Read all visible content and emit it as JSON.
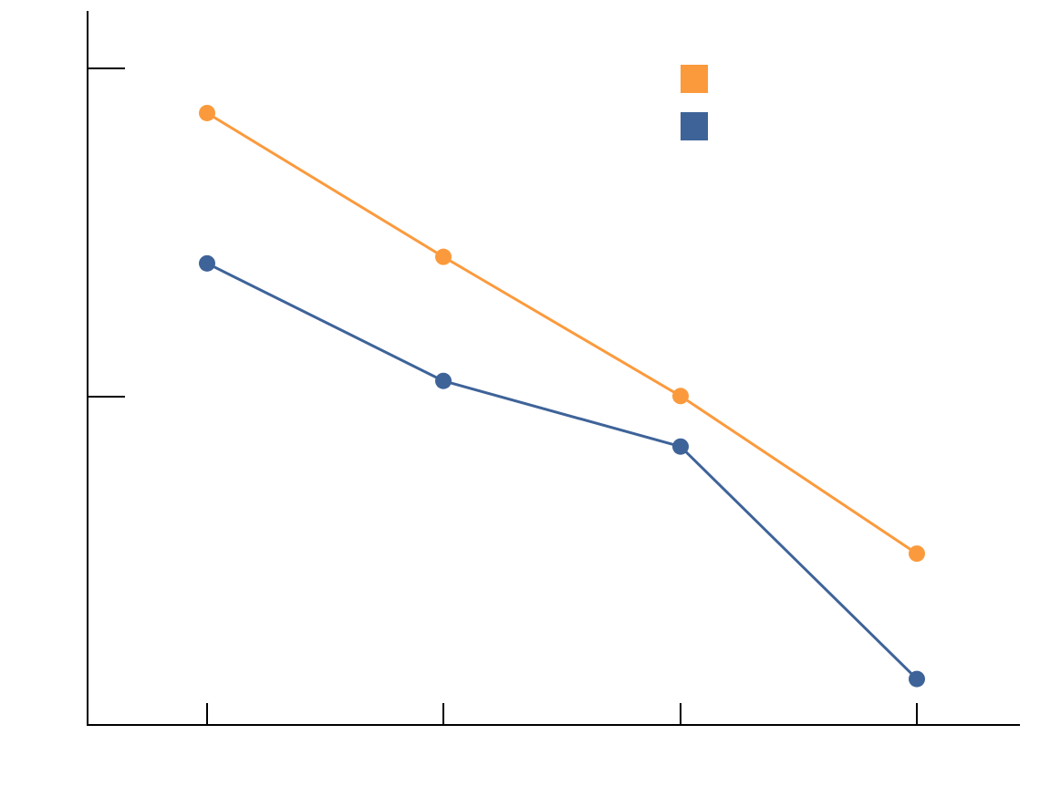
{
  "chart_data": {
    "type": "line",
    "title": "",
    "xlabel": "",
    "ylabel": "",
    "x_categories": [
      "",
      "",
      "",
      ""
    ],
    "ylim": [
      0,
      1
    ],
    "y_ticks": [
      {
        "value": 0.5,
        "label": ""
      },
      {
        "value": 1.0,
        "label": ""
      }
    ],
    "grid": false,
    "legend_position": "top-right",
    "series": [
      {
        "name": "",
        "color": "#FB9A3C",
        "values": [
          0.932,
          0.713,
          0.501,
          0.261
        ]
      },
      {
        "name": "",
        "color": "#3E6399",
        "values": [
          0.703,
          0.524,
          0.424,
          0.07
        ]
      }
    ]
  }
}
